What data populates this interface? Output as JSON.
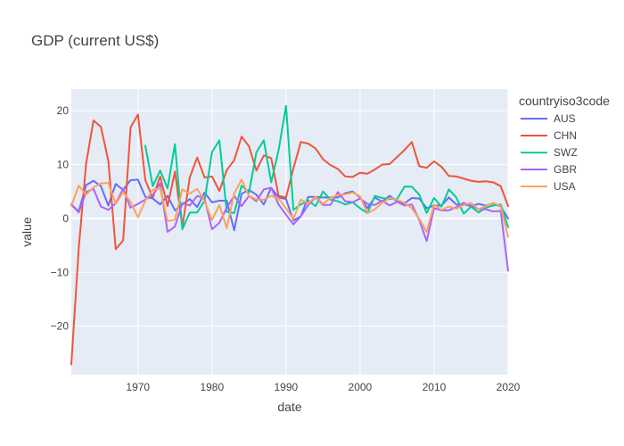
{
  "chart_data": {
    "type": "line",
    "title": "GDP (current US$)",
    "xlabel": "date",
    "ylabel": "value",
    "legend_title": "countryiso3code",
    "legend_position": "top-right",
    "grid": true,
    "xlim": [
      1961,
      2020
    ],
    "ylim": [
      -29,
      24
    ],
    "x_ticks": [
      1970,
      1980,
      1990,
      2000,
      2010,
      2020
    ],
    "y_ticks": [
      -20,
      -10,
      0,
      10,
      20
    ],
    "x_tick_labels": [
      "1970",
      "1980",
      "1990",
      "2000",
      "2010",
      "2020"
    ],
    "y_tick_labels": [
      "−20",
      "−10",
      "0",
      "10",
      "20"
    ],
    "colors": {
      "plot_background": "#E5ECF6",
      "grid": "#ffffff",
      "text": "#444444"
    },
    "series": [
      {
        "name": "AUS",
        "color": "#636EFA",
        "x": [
          1961,
          1962,
          1963,
          1964,
          1965,
          1966,
          1967,
          1968,
          1969,
          1970,
          1971,
          1972,
          1973,
          1974,
          1975,
          1976,
          1977,
          1978,
          1979,
          1980,
          1981,
          1982,
          1983,
          1984,
          1985,
          1986,
          1987,
          1988,
          1989,
          1990,
          1991,
          1992,
          1993,
          1994,
          1995,
          1996,
          1997,
          1998,
          1999,
          2000,
          2001,
          2002,
          2003,
          2004,
          2005,
          2006,
          2007,
          2008,
          2009,
          2010,
          2011,
          2012,
          2013,
          2014,
          2015,
          2016,
          2017,
          2018,
          2019,
          2020
        ],
        "y": [
          2.5,
          1.3,
          6.2,
          7.0,
          6.0,
          2.4,
          6.4,
          5.3,
          7.1,
          7.2,
          4.0,
          3.7,
          2.6,
          4.2,
          1.5,
          2.6,
          3.6,
          2.1,
          4.8,
          3.0,
          3.3,
          3.3,
          -2.2,
          4.6,
          5.3,
          4.4,
          2.6,
          5.7,
          3.9,
          3.6,
          -0.4,
          0.4,
          4.0,
          4.0,
          3.9,
          3.9,
          3.9,
          4.7,
          5.0,
          3.9,
          1.9,
          3.9,
          3.1,
          4.2,
          3.2,
          2.8,
          3.8,
          3.7,
          1.9,
          2.4,
          2.4,
          3.9,
          2.6,
          2.6,
          2.3,
          2.7,
          2.4,
          2.8,
          2.2,
          0.0
        ]
      },
      {
        "name": "CHN",
        "color": "#EF553B",
        "x": [
          1961,
          1962,
          1963,
          1964,
          1965,
          1966,
          1967,
          1968,
          1969,
          1970,
          1971,
          1972,
          1973,
          1974,
          1975,
          1976,
          1977,
          1978,
          1979,
          1980,
          1981,
          1982,
          1983,
          1984,
          1985,
          1986,
          1987,
          1988,
          1989,
          1990,
          1991,
          1992,
          1993,
          1994,
          1995,
          1996,
          1997,
          1998,
          1999,
          2000,
          2001,
          2002,
          2003,
          2004,
          2005,
          2006,
          2007,
          2008,
          2009,
          2010,
          2011,
          2012,
          2013,
          2014,
          2015,
          2016,
          2017,
          2018,
          2019,
          2020
        ],
        "y": [
          -27.1,
          -5.6,
          10.2,
          18.2,
          17.0,
          10.7,
          -5.7,
          -4.1,
          16.9,
          19.3,
          7.1,
          3.8,
          7.8,
          2.3,
          8.7,
          -1.6,
          7.6,
          11.3,
          7.6,
          7.8,
          5.1,
          9.0,
          10.8,
          15.2,
          13.4,
          8.9,
          11.7,
          11.2,
          4.2,
          3.9,
          9.3,
          14.2,
          13.9,
          13.0,
          11.0,
          9.9,
          9.2,
          7.8,
          7.7,
          8.5,
          8.3,
          9.1,
          10.0,
          10.1,
          11.4,
          12.7,
          14.2,
          9.7,
          9.4,
          10.6,
          9.6,
          7.9,
          7.8,
          7.4,
          7.0,
          6.8,
          6.9,
          6.7,
          6.0,
          2.3
        ]
      },
      {
        "name": "SWZ",
        "color": "#00CC96",
        "x": [
          1971,
          1972,
          1973,
          1974,
          1975,
          1976,
          1977,
          1978,
          1979,
          1980,
          1981,
          1982,
          1983,
          1984,
          1985,
          1986,
          1987,
          1988,
          1989,
          1990,
          1991,
          1992,
          1993,
          1994,
          1995,
          1996,
          1997,
          1998,
          1999,
          2000,
          2001,
          2002,
          2003,
          2004,
          2005,
          2006,
          2007,
          2008,
          2009,
          2010,
          2011,
          2012,
          2013,
          2014,
          2015,
          2016,
          2017,
          2018,
          2019,
          2020
        ],
        "y": [
          13.5,
          6.0,
          8.9,
          5.6,
          13.8,
          -2.0,
          1.1,
          1.1,
          3.3,
          12.3,
          14.5,
          1.2,
          1.0,
          6.1,
          4.8,
          12.3,
          14.5,
          6.7,
          12.7,
          20.9,
          1.6,
          2.6,
          3.3,
          2.3,
          5.0,
          3.5,
          3.2,
          2.6,
          3.0,
          1.9,
          1.0,
          4.2,
          3.8,
          3.6,
          3.6,
          5.9,
          5.9,
          4.4,
          1.0,
          3.8,
          2.2,
          5.4,
          3.9,
          0.9,
          2.2,
          1.1,
          2.0,
          2.4,
          2.6,
          -1.6
        ]
      },
      {
        "name": "GBR",
        "color": "#AB63FA",
        "x": [
          1961,
          1962,
          1963,
          1964,
          1965,
          1966,
          1967,
          1968,
          1969,
          1970,
          1971,
          1972,
          1973,
          1974,
          1975,
          1976,
          1977,
          1978,
          1979,
          1980,
          1981,
          1982,
          1983,
          1984,
          1985,
          1986,
          1987,
          1988,
          1989,
          1990,
          1991,
          1992,
          1993,
          1994,
          1995,
          1996,
          1997,
          1998,
          1999,
          2000,
          2001,
          2002,
          2003,
          2004,
          2005,
          2006,
          2007,
          2008,
          2009,
          2010,
          2011,
          2012,
          2013,
          2014,
          2015,
          2016,
          2017,
          2018,
          2019,
          2020
        ],
        "y": [
          2.7,
          1.1,
          4.9,
          5.5,
          2.2,
          1.6,
          2.8,
          5.5,
          2.0,
          2.7,
          3.5,
          4.3,
          6.5,
          -2.5,
          -1.5,
          2.9,
          2.4,
          4.2,
          3.7,
          -2.0,
          -0.8,
          2.0,
          4.2,
          2.3,
          4.2,
          3.2,
          5.4,
          5.7,
          2.6,
          0.7,
          -1.1,
          0.4,
          2.5,
          3.9,
          2.5,
          2.5,
          4.9,
          3.2,
          3.0,
          3.7,
          2.7,
          2.5,
          3.3,
          2.4,
          3.1,
          2.4,
          2.6,
          -0.3,
          -4.2,
          1.9,
          1.5,
          1.5,
          2.1,
          2.9,
          2.4,
          1.7,
          1.7,
          1.3,
          1.4,
          -9.7
        ]
      },
      {
        "name": "USA",
        "color": "#FFA15A",
        "x": [
          1961,
          1962,
          1963,
          1964,
          1965,
          1966,
          1967,
          1968,
          1969,
          1970,
          1971,
          1972,
          1973,
          1974,
          1975,
          1976,
          1977,
          1978,
          1979,
          1980,
          1981,
          1982,
          1983,
          1984,
          1985,
          1986,
          1987,
          1988,
          1989,
          1990,
          1991,
          1992,
          1993,
          1994,
          1995,
          1996,
          1997,
          1998,
          1999,
          2000,
          2001,
          2002,
          2003,
          2004,
          2005,
          2006,
          2007,
          2008,
          2009,
          2010,
          2011,
          2012,
          2013,
          2014,
          2015,
          2016,
          2017,
          2018,
          2019,
          2020
        ],
        "y": [
          2.3,
          6.1,
          4.4,
          5.8,
          6.5,
          6.6,
          2.7,
          4.9,
          3.1,
          0.2,
          3.3,
          5.3,
          5.6,
          -0.5,
          -0.2,
          5.4,
          4.6,
          5.5,
          3.2,
          -0.3,
          2.5,
          -1.8,
          4.6,
          7.2,
          4.2,
          3.5,
          3.5,
          4.2,
          3.7,
          1.9,
          -0.1,
          3.5,
          2.8,
          4.0,
          2.7,
          3.8,
          4.4,
          4.5,
          4.8,
          4.1,
          1.0,
          1.7,
          2.9,
          3.8,
          3.5,
          2.9,
          1.9,
          -0.1,
          -2.5,
          2.6,
          1.6,
          2.2,
          1.8,
          2.5,
          2.9,
          1.7,
          2.3,
          2.9,
          2.3,
          -3.4
        ]
      }
    ]
  }
}
